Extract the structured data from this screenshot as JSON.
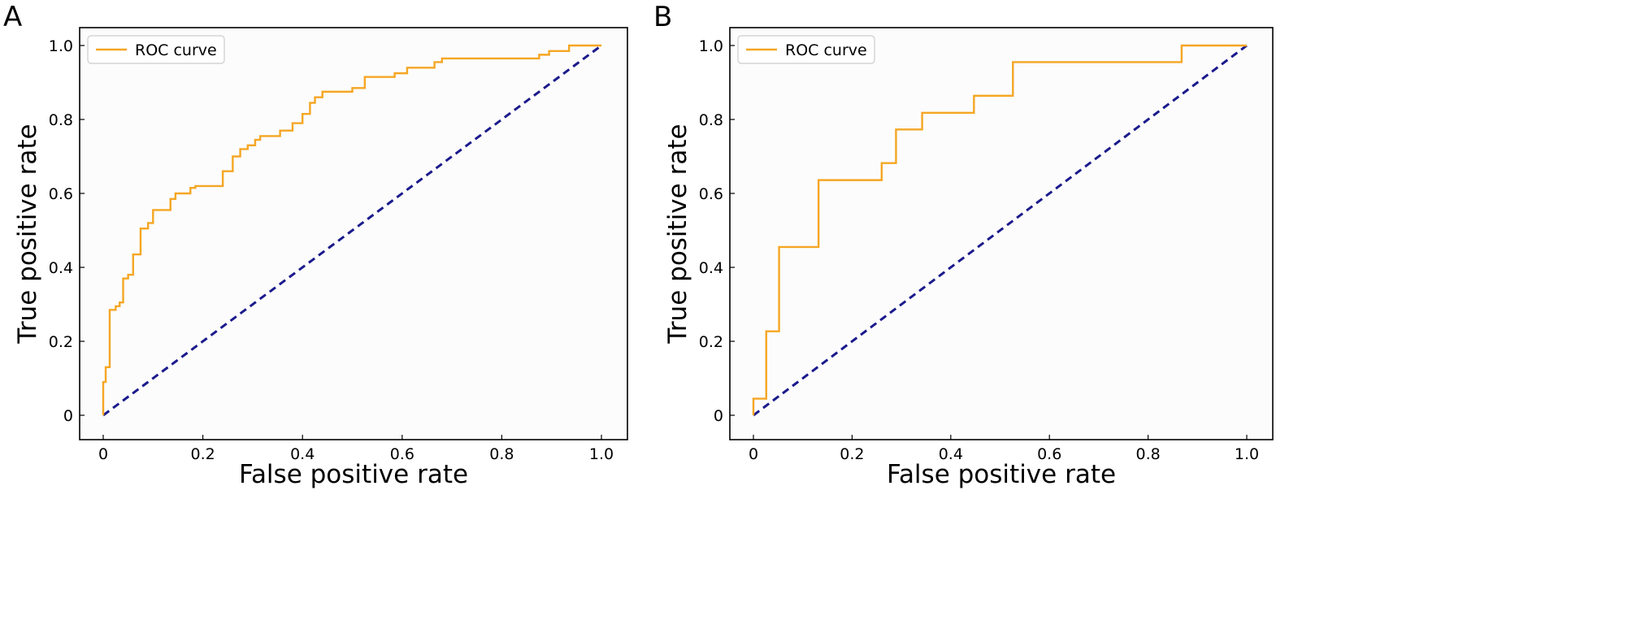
{
  "chart_data": [
    {
      "type": "line",
      "panel_label": "A",
      "xlabel": "False positive rate",
      "ylabel": "True positive rate",
      "xlim": [
        0,
        1
      ],
      "ylim": [
        0,
        1
      ],
      "xticks": [
        0,
        0.2,
        0.4,
        0.6,
        0.8,
        1.0
      ],
      "xtick_labels": [
        "0",
        "0.2",
        "0.4",
        "0.6",
        "0.8",
        "1.0"
      ],
      "yticks": [
        0,
        0.2,
        0.4,
        0.6,
        0.8,
        1.0
      ],
      "ytick_labels": [
        "0",
        "0.2",
        "0.4",
        "0.6",
        "0.8",
        "1.0"
      ],
      "grid": false,
      "legend_position": "top-left",
      "series": [
        {
          "name": "ROC curve",
          "color": "#f5a623",
          "style": "step",
          "x": [
            0,
            0,
            0.005,
            0.005,
            0.013,
            0.013,
            0.025,
            0.025,
            0.033,
            0.033,
            0.04,
            0.04,
            0.05,
            0.05,
            0.06,
            0.06,
            0.075,
            0.075,
            0.09,
            0.09,
            0.1,
            0.1,
            0.135,
            0.135,
            0.145,
            0.145,
            0.175,
            0.175,
            0.185,
            0.185,
            0.24,
            0.24,
            0.26,
            0.26,
            0.275,
            0.275,
            0.29,
            0.29,
            0.305,
            0.305,
            0.315,
            0.315,
            0.355,
            0.355,
            0.38,
            0.38,
            0.4,
            0.4,
            0.415,
            0.415,
            0.425,
            0.425,
            0.44,
            0.44,
            0.5,
            0.5,
            0.525,
            0.525,
            0.585,
            0.585,
            0.61,
            0.61,
            0.665,
            0.665,
            0.68,
            0.68,
            0.875,
            0.875,
            0.895,
            0.895,
            0.935,
            0.935,
            1.0
          ],
          "y": [
            0,
            0.09,
            0.09,
            0.13,
            0.13,
            0.285,
            0.285,
            0.295,
            0.295,
            0.305,
            0.305,
            0.37,
            0.37,
            0.38,
            0.38,
            0.435,
            0.435,
            0.505,
            0.505,
            0.52,
            0.52,
            0.555,
            0.555,
            0.585,
            0.585,
            0.6,
            0.6,
            0.615,
            0.615,
            0.62,
            0.62,
            0.66,
            0.66,
            0.7,
            0.7,
            0.72,
            0.72,
            0.73,
            0.73,
            0.745,
            0.745,
            0.755,
            0.755,
            0.77,
            0.77,
            0.79,
            0.79,
            0.815,
            0.815,
            0.845,
            0.845,
            0.86,
            0.86,
            0.875,
            0.875,
            0.885,
            0.885,
            0.915,
            0.915,
            0.925,
            0.925,
            0.94,
            0.94,
            0.955,
            0.955,
            0.965,
            0.965,
            0.975,
            0.975,
            0.985,
            0.985,
            1.0,
            1.0
          ]
        },
        {
          "name": "",
          "color": "#1a1a8c",
          "style": "dashed",
          "x": [
            0,
            1
          ],
          "y": [
            0,
            1
          ]
        }
      ]
    },
    {
      "type": "line",
      "panel_label": "B",
      "xlabel": "False positive rate",
      "ylabel": "True positive rate",
      "xlim": [
        0,
        1
      ],
      "ylim": [
        0,
        1
      ],
      "xticks": [
        0,
        0.2,
        0.4,
        0.6,
        0.8,
        1.0
      ],
      "xtick_labels": [
        "0",
        "0.2",
        "0.4",
        "0.6",
        "0.8",
        "1.0"
      ],
      "yticks": [
        0,
        0.2,
        0.4,
        0.6,
        0.8,
        1.0
      ],
      "ytick_labels": [
        "0",
        "0.2",
        "0.4",
        "0.6",
        "0.8",
        "1.0"
      ],
      "grid": false,
      "legend_position": "top-left",
      "series": [
        {
          "name": "ROC curve",
          "color": "#f5a623",
          "style": "step",
          "x": [
            0,
            0,
            0.026,
            0.026,
            0.052,
            0.052,
            0.132,
            0.132,
            0.26,
            0.26,
            0.289,
            0.289,
            0.342,
            0.342,
            0.447,
            0.447,
            0.526,
            0.526,
            0.868,
            0.868,
            1.0
          ],
          "y": [
            0,
            0.045,
            0.045,
            0.227,
            0.227,
            0.455,
            0.455,
            0.636,
            0.636,
            0.682,
            0.682,
            0.773,
            0.773,
            0.818,
            0.818,
            0.864,
            0.864,
            0.955,
            0.955,
            1.0,
            1.0
          ]
        },
        {
          "name": "",
          "color": "#1a1a8c",
          "style": "dashed",
          "x": [
            0,
            1
          ],
          "y": [
            0,
            1
          ]
        }
      ]
    }
  ]
}
